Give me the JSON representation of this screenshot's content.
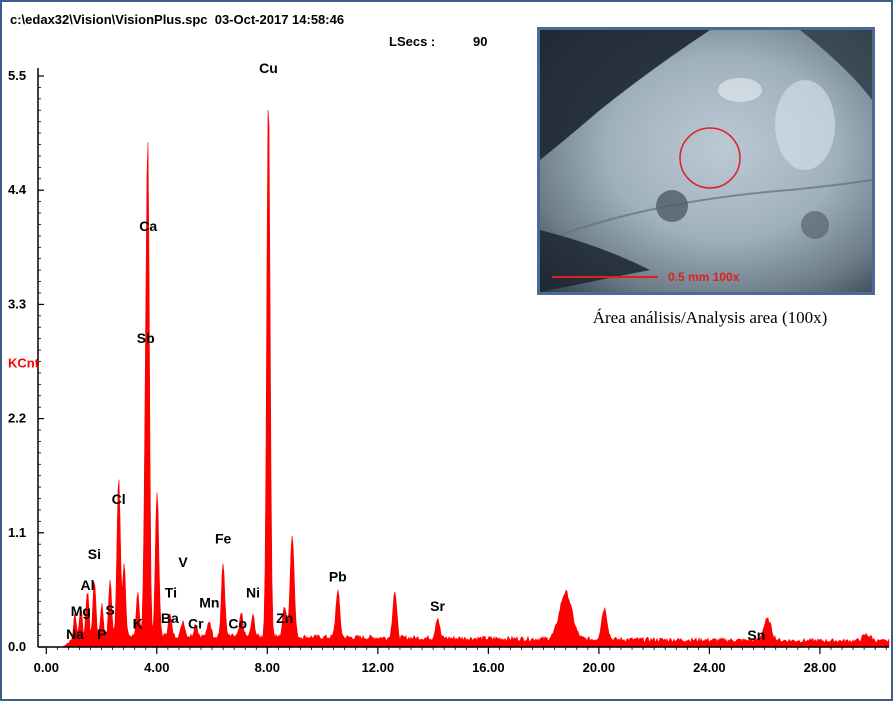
{
  "header": {
    "file_info": "c:\\edax32\\Vision\\VisionPlus.spc  03-Oct-2017 14:58:46",
    "lsecs_label": "LSecs :",
    "lsecs_value": "90"
  },
  "inset": {
    "scale_text": "0.5 mm  100x",
    "caption": "Área análisis/Analysis area (100x)"
  },
  "colors": {
    "spectrum": "#ff0000",
    "frame": "#3d5e8a",
    "axis": "#000000",
    "ylabel": "#ff0000"
  },
  "chart_data": {
    "type": "area",
    "ylabel": "KCnt",
    "xlim": [
      -0.3,
      30.5
    ],
    "ylim": [
      0,
      5.5
    ],
    "y_ticks": [
      0.0,
      1.1,
      2.2,
      3.3,
      4.4,
      5.5
    ],
    "y_tick_labels": [
      "0.0",
      "1.1",
      "2.2",
      "3.3",
      "4.4",
      "5.5"
    ],
    "x_ticks": [
      0,
      4,
      8,
      12,
      16,
      20,
      24,
      28
    ],
    "x_tick_labels": [
      "0.00",
      "4.00",
      "8.00",
      "12.00",
      "16.00",
      "20.00",
      "24.00",
      "28.00"
    ],
    "background": 0.12,
    "peaks": [
      {
        "x": 1.04,
        "y": 0.25,
        "w": 0.05
      },
      {
        "x": 1.25,
        "y": 0.3,
        "w": 0.05
      },
      {
        "x": 1.49,
        "y": 0.45,
        "w": 0.05
      },
      {
        "x": 1.74,
        "y": 0.55,
        "w": 0.05
      },
      {
        "x": 2.01,
        "y": 0.3,
        "w": 0.05
      },
      {
        "x": 2.31,
        "y": 0.55,
        "w": 0.05
      },
      {
        "x": 2.62,
        "y": 1.55,
        "w": 0.06
      },
      {
        "x": 2.82,
        "y": 0.7,
        "w": 0.05
      },
      {
        "x": 3.31,
        "y": 0.4,
        "w": 0.05
      },
      {
        "x": 3.61,
        "y": 2.45,
        "w": 0.06
      },
      {
        "x": 3.69,
        "y": 3.6,
        "w": 0.05
      },
      {
        "x": 4.01,
        "y": 1.4,
        "w": 0.06
      },
      {
        "x": 4.47,
        "y": 0.2,
        "w": 0.06
      },
      {
        "x": 4.95,
        "y": 0.15,
        "w": 0.06
      },
      {
        "x": 5.41,
        "y": 0.12,
        "w": 0.06
      },
      {
        "x": 5.9,
        "y": 0.15,
        "w": 0.06
      },
      {
        "x": 6.4,
        "y": 0.7,
        "w": 0.06
      },
      {
        "x": 7.06,
        "y": 0.22,
        "w": 0.06
      },
      {
        "x": 7.48,
        "y": 0.2,
        "w": 0.06
      },
      {
        "x": 8.04,
        "y": 5.25,
        "w": 0.06
      },
      {
        "x": 8.63,
        "y": 0.3,
        "w": 0.07
      },
      {
        "x": 8.9,
        "y": 1.0,
        "w": 0.07
      },
      {
        "x": 10.55,
        "y": 0.45,
        "w": 0.07
      },
      {
        "x": 12.61,
        "y": 0.45,
        "w": 0.07
      },
      {
        "x": 14.16,
        "y": 0.2,
        "w": 0.07
      },
      {
        "x": 18.8,
        "y": 0.45,
        "w": 0.22
      },
      {
        "x": 20.2,
        "y": 0.3,
        "w": 0.1
      },
      {
        "x": 26.1,
        "y": 0.2,
        "w": 0.14
      },
      {
        "x": 29.7,
        "y": 0.06,
        "w": 0.15
      }
    ],
    "annotations": [
      {
        "label": "Cu",
        "x": 8.04,
        "y": 5.5
      },
      {
        "label": "Ca",
        "x": 3.69,
        "y": 3.98
      },
      {
        "label": "Sb",
        "x": 3.6,
        "y": 2.9
      },
      {
        "label": "Cl",
        "x": 2.62,
        "y": 1.35
      },
      {
        "label": "Si",
        "x": 1.74,
        "y": 0.82
      },
      {
        "label": "Al",
        "x": 1.49,
        "y": 0.52
      },
      {
        "label": "Mg",
        "x": 1.25,
        "y": 0.27
      },
      {
        "label": "S",
        "x": 2.31,
        "y": 0.28
      },
      {
        "label": "Na",
        "x": 1.04,
        "y": 0.05
      },
      {
        "label": "P",
        "x": 2.01,
        "y": 0.05
      },
      {
        "label": "K",
        "x": 3.31,
        "y": 0.15
      },
      {
        "label": "Ti",
        "x": 4.51,
        "y": 0.45
      },
      {
        "label": "V",
        "x": 4.95,
        "y": 0.74
      },
      {
        "label": "Ba",
        "x": 4.47,
        "y": 0.2
      },
      {
        "label": "Cr",
        "x": 5.41,
        "y": 0.15
      },
      {
        "label": "Mn",
        "x": 5.9,
        "y": 0.35
      },
      {
        "label": "Fe",
        "x": 6.4,
        "y": 0.97
      },
      {
        "label": "Co",
        "x": 6.93,
        "y": 0.15
      },
      {
        "label": "Ni",
        "x": 7.48,
        "y": 0.45
      },
      {
        "label": "Zn",
        "x": 8.63,
        "y": 0.2
      },
      {
        "label": "Pb",
        "x": 10.55,
        "y": 0.6
      },
      {
        "label": "Sr",
        "x": 14.16,
        "y": 0.32
      },
      {
        "label": "Sn",
        "x": 25.7,
        "y": 0.04
      }
    ]
  }
}
